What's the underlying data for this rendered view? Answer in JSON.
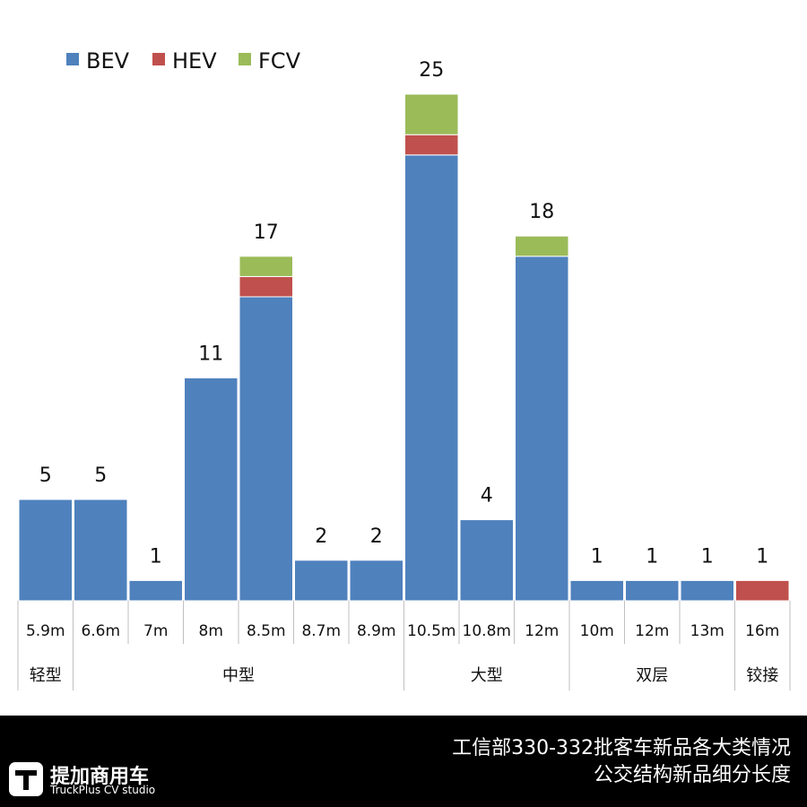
{
  "chart_data": {
    "type": "bar",
    "stacked": true,
    "series": [
      {
        "name": "BEV",
        "color": "#4f81bd",
        "values": [
          5,
          5,
          1,
          11,
          15,
          2,
          2,
          22,
          4,
          17,
          1,
          1,
          1,
          0
        ]
      },
      {
        "name": "HEV",
        "color": "#c0504d",
        "values": [
          0,
          0,
          0,
          0,
          1,
          0,
          0,
          1,
          0,
          0,
          0,
          0,
          0,
          1
        ]
      },
      {
        "name": "FCV",
        "color": "#9bbb59",
        "values": [
          0,
          0,
          0,
          0,
          1,
          0,
          0,
          2,
          0,
          1,
          0,
          0,
          0,
          0
        ]
      }
    ],
    "categories": [
      "5.9m",
      "6.6m",
      "7m",
      "8m",
      "8.5m",
      "8.7m",
      "8.9m",
      "10.5m",
      "10.8m",
      "12m",
      "10m",
      "12m",
      "13m",
      "16m"
    ],
    "totals": [
      "5",
      "5",
      "1",
      "11",
      "17",
      "2",
      "2",
      "25",
      "4",
      "18",
      "1",
      "1",
      "1",
      "1"
    ],
    "groups": [
      {
        "label": "轻型",
        "span": 1
      },
      {
        "label": "中型",
        "span": 6
      },
      {
        "label": "大型",
        "span": 3
      },
      {
        "label": "双层",
        "span": 3
      },
      {
        "label": "铰接",
        "span": 1
      }
    ],
    "ylim": [
      0,
      26
    ],
    "legend_position": "top-left",
    "grid": false
  },
  "caption": {
    "line1": "工信部330-332批客车新品各大类情况",
    "line2": "公交结构新品细分长度"
  },
  "logo": {
    "name": "提加商用车",
    "sub": "TruckPlus CV studio"
  }
}
